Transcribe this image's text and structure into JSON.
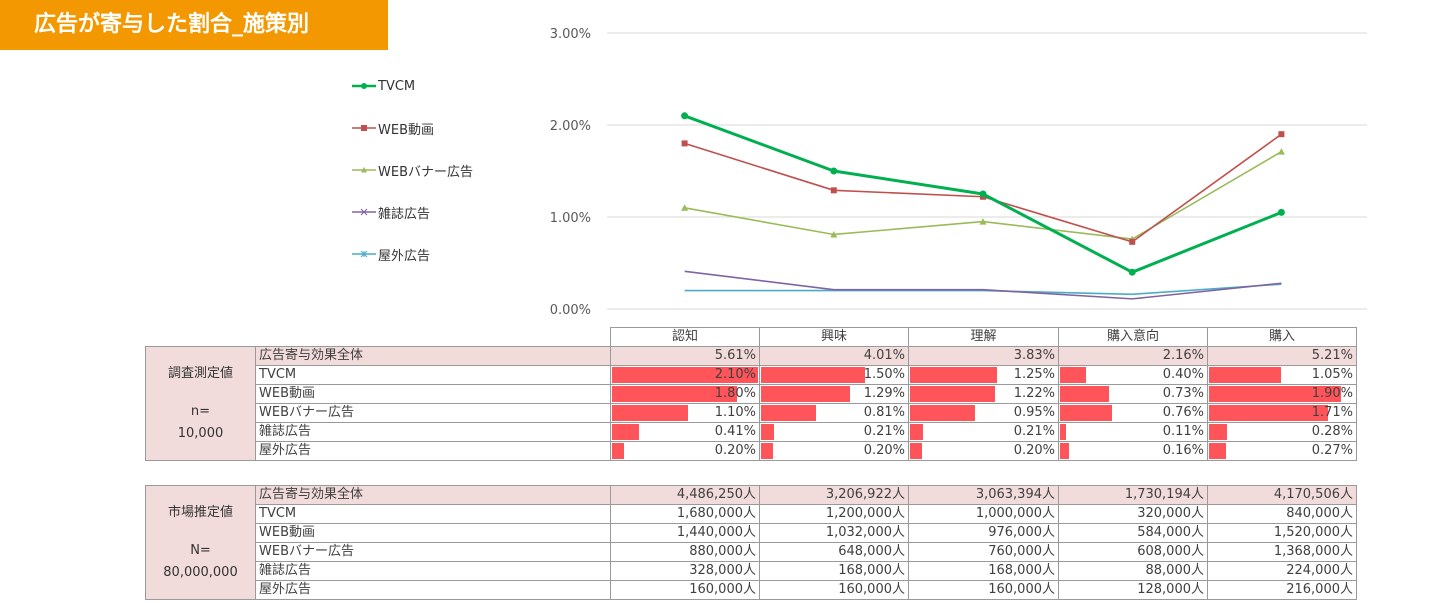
{
  "title": "広告が寄与した割合_施策別",
  "chart_data": {
    "type": "line",
    "title": "",
    "categories": [
      "認知",
      "興味",
      "理解",
      "購入意向",
      "購入"
    ],
    "y_ticks": [
      "0.00%",
      "1.00%",
      "2.00%",
      "3.00%"
    ],
    "ylim": [
      0,
      3.0
    ],
    "y_unit": "%",
    "grid": true,
    "legend_position": "left",
    "series": [
      {
        "name": "TVCM",
        "color": "#00b050",
        "marker": "circle",
        "values": [
          2.1,
          1.5,
          1.25,
          0.4,
          1.05
        ]
      },
      {
        "name": "WEB動画",
        "color": "#c0504d",
        "marker": "square",
        "values": [
          1.8,
          1.29,
          1.22,
          0.73,
          1.9
        ]
      },
      {
        "name": "WEBバナー広告",
        "color": "#9bbb59",
        "marker": "triangle",
        "values": [
          1.1,
          0.81,
          0.95,
          0.76,
          1.71
        ]
      },
      {
        "name": "雑誌広告",
        "color": "#8064a2",
        "marker": "x",
        "values": [
          0.41,
          0.21,
          0.21,
          0.11,
          0.28
        ]
      },
      {
        "name": "屋外広告",
        "color": "#4bacc6",
        "marker": "star",
        "values": [
          0.2,
          0.2,
          0.2,
          0.16,
          0.27
        ]
      }
    ]
  },
  "survey_table": {
    "group_label": "調査測定値",
    "n_label": "n=",
    "n_value": "10,000",
    "header": [
      "認知",
      "興味",
      "理解",
      "購入意向",
      "購入"
    ],
    "bar_max": 2.1,
    "bar_color": "#ff555a",
    "total": {
      "name": "広告寄与効果全体",
      "values": [
        "5.61%",
        "4.01%",
        "3.83%",
        "2.16%",
        "5.21%"
      ]
    },
    "rows": [
      {
        "name": "TVCM",
        "values": [
          2.1,
          1.5,
          1.25,
          0.4,
          1.05
        ],
        "labels": [
          "2.10%",
          "1.50%",
          "1.25%",
          "0.40%",
          "1.05%"
        ]
      },
      {
        "name": "WEB動画",
        "values": [
          1.8,
          1.29,
          1.22,
          0.73,
          1.9
        ],
        "labels": [
          "1.80%",
          "1.29%",
          "1.22%",
          "0.73%",
          "1.90%"
        ]
      },
      {
        "name": "WEBバナー広告",
        "values": [
          1.1,
          0.81,
          0.95,
          0.76,
          1.71
        ],
        "labels": [
          "1.10%",
          "0.81%",
          "0.95%",
          "0.76%",
          "1.71%"
        ]
      },
      {
        "name": "雑誌広告",
        "values": [
          0.41,
          0.21,
          0.21,
          0.11,
          0.28
        ],
        "labels": [
          "0.41%",
          "0.21%",
          "0.21%",
          "0.11%",
          "0.28%"
        ]
      },
      {
        "name": "屋外広告",
        "values": [
          0.2,
          0.2,
          0.2,
          0.16,
          0.27
        ],
        "labels": [
          "0.20%",
          "0.20%",
          "0.20%",
          "0.16%",
          "0.27%"
        ]
      }
    ]
  },
  "market_table": {
    "group_label": "市場推定値",
    "n_label": "N=",
    "n_value": "80,000,000",
    "total": {
      "name": "広告寄与効果全体",
      "values": [
        "4,486,250人",
        "3,206,922人",
        "3,063,394人",
        "1,730,194人",
        "4,170,506人"
      ]
    },
    "rows": [
      {
        "name": "TVCM",
        "values": [
          "1,680,000人",
          "1,200,000人",
          "1,000,000人",
          "320,000人",
          "840,000人"
        ]
      },
      {
        "name": "WEB動画",
        "values": [
          "1,440,000人",
          "1,032,000人",
          "976,000人",
          "584,000人",
          "1,520,000人"
        ]
      },
      {
        "name": "WEBバナー広告",
        "values": [
          "880,000人",
          "648,000人",
          "760,000人",
          "608,000人",
          "1,368,000人"
        ]
      },
      {
        "name": "雑誌広告",
        "values": [
          "328,000人",
          "168,000人",
          "168,000人",
          "88,000人",
          "224,000人"
        ]
      },
      {
        "name": "屋外広告",
        "values": [
          "160,000人",
          "160,000人",
          "160,000人",
          "128,000人",
          "216,000人"
        ]
      }
    ]
  }
}
